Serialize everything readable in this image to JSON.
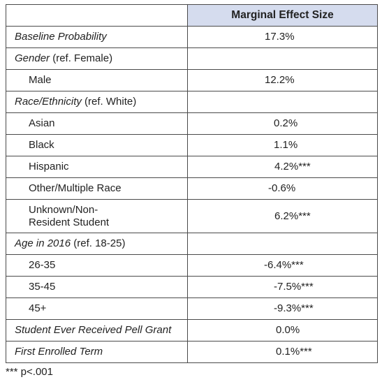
{
  "table": {
    "header": "Marginal Effect Size",
    "rows": [
      {
        "label": "Baseline Probability",
        "italic": true,
        "ref": "",
        "value": "17.3%",
        "indent": false
      },
      {
        "label": "Gender",
        "italic": true,
        "ref": " (ref. Female)",
        "value": "",
        "indent": false
      },
      {
        "label": "Male",
        "italic": false,
        "ref": "",
        "value": "12.2%",
        "indent": true
      },
      {
        "label": "Race/Ethnicity",
        "italic": true,
        "ref": " (ref. White)",
        "value": "",
        "indent": false
      },
      {
        "label": "Asian",
        "italic": false,
        "ref": "",
        "value": "0.2%",
        "indent": true
      },
      {
        "label": "Black",
        "italic": false,
        "ref": "",
        "value": "1.1%",
        "indent": true
      },
      {
        "label": "Hispanic",
        "italic": false,
        "ref": "",
        "value": "4.2%***",
        "indent": true
      },
      {
        "label": "Other/Multiple Race",
        "italic": false,
        "ref": "",
        "value": "-0.6%",
        "indent": true
      },
      {
        "label": "Unknown/Non-Resident Student",
        "line1": "Unknown/Non-",
        "line2": "Resident Student",
        "italic": false,
        "ref": "",
        "value": "6.2%***",
        "indent": true,
        "tall": true
      },
      {
        "label": "Age in 2016",
        "italic": true,
        "ref": " (ref. 18-25)",
        "value": "",
        "indent": false
      },
      {
        "label": "26-35",
        "italic": false,
        "ref": "",
        "value": "-6.4%***",
        "indent": true
      },
      {
        "label": "35-45",
        "italic": false,
        "ref": "",
        "value": "-7.5%***",
        "indent": true
      },
      {
        "label": "45+",
        "italic": false,
        "ref": "",
        "value": "-9.3%***",
        "indent": true
      },
      {
        "label": "Student Ever Received Pell Grant",
        "italic": true,
        "ref": "",
        "value": "0.0%",
        "indent": false
      },
      {
        "label": "First Enrolled Term",
        "italic": true,
        "ref": "",
        "value": "0.1%***",
        "indent": false
      }
    ]
  },
  "note": "*** p<.001"
}
